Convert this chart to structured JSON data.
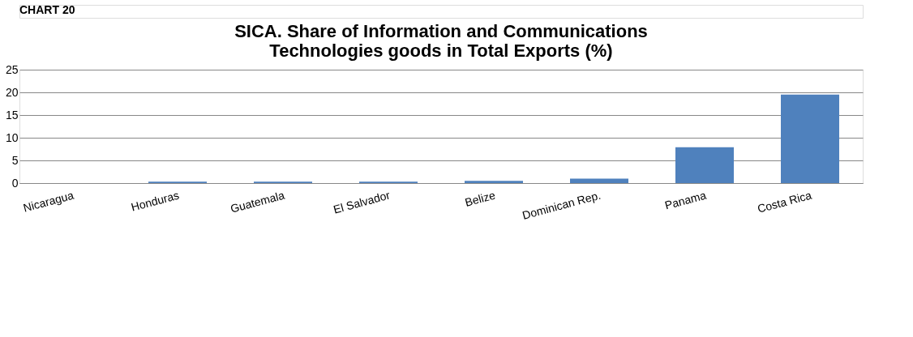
{
  "chart_data": {
    "type": "bar",
    "title": "SICA. Share of Information and Communications\nTechnologies goods in Total Exports (%)",
    "annotations": [
      "CHART 20"
    ],
    "categories": [
      "Nicaragua",
      "Honduras",
      "Guatemala",
      "El Salvador",
      "Belize",
      "Dominican Rep.",
      "Panama",
      "Costa Rica"
    ],
    "values": [
      0,
      0.3,
      0.3,
      0.3,
      0.5,
      1.0,
      7.9,
      19.5
    ],
    "color": "#4f81bd",
    "ylim": [
      0,
      25
    ],
    "yticks": [
      0,
      5,
      10,
      15,
      20,
      25
    ],
    "grid": "y"
  }
}
